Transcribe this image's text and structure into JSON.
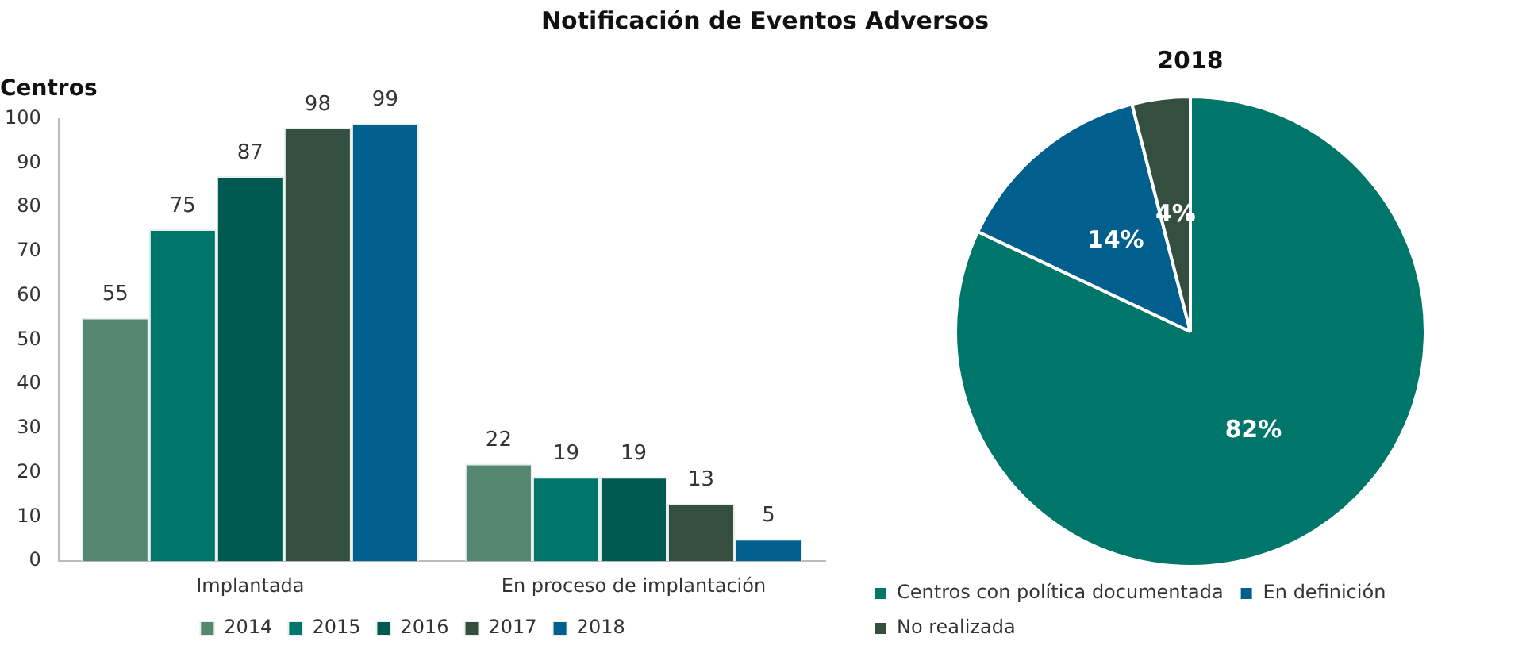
{
  "chart_data": [
    {
      "type": "bar",
      "title": "Notificación de Eventos Adversos",
      "ylabel": "Centros",
      "categories": [
        "Implantada",
        "En proceso de implantación"
      ],
      "series": [
        {
          "name": "2014",
          "color": "#548670",
          "values": [
            55,
            22
          ]
        },
        {
          "name": "2015",
          "color": "#00756a",
          "values": [
            75,
            19
          ]
        },
        {
          "name": "2016",
          "color": "#005a52",
          "values": [
            87,
            19
          ]
        },
        {
          "name": "2017",
          "color": "#344f40",
          "values": [
            98,
            13
          ]
        },
        {
          "name": "2018",
          "color": "#005f8c",
          "values": [
            99,
            5
          ]
        }
      ],
      "ylim": [
        0,
        100
      ],
      "yticks": [
        0,
        10,
        20,
        30,
        40,
        50,
        60,
        70,
        80,
        90,
        100
      ],
      "grid": false,
      "legend": "bottom",
      "data_labels": true
    },
    {
      "type": "pie",
      "title": "2018",
      "categories": [
        "Centros con política documentada",
        "En definición",
        "No realizada"
      ],
      "values": [
        82,
        14,
        4
      ],
      "colors": [
        "#00756a",
        "#005f8c",
        "#344f40"
      ],
      "value_labels": [
        "82%",
        "14%",
        "4%"
      ],
      "legend": "bottom"
    }
  ]
}
